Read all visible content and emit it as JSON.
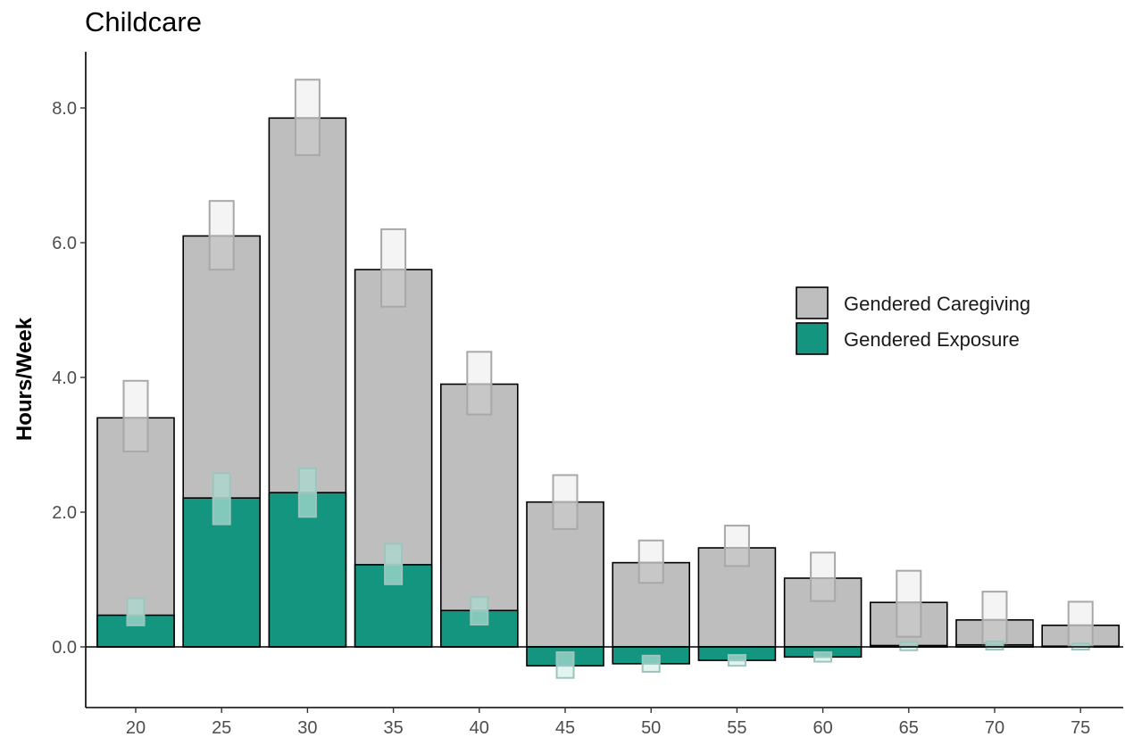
{
  "chart_data": {
    "type": "bar",
    "title": "Childcare",
    "xlabel": "",
    "ylabel": "Hours/Week",
    "ylim": [
      -0.85,
      8.8
    ],
    "yticks": [
      0,
      2,
      4,
      6,
      8
    ],
    "ytick_labels": [
      "0.0",
      "2.0",
      "4.0",
      "6.0",
      "8.0"
    ],
    "categories": [
      "20",
      "25",
      "30",
      "35",
      "40",
      "45",
      "50",
      "55",
      "60",
      "65",
      "70",
      "75"
    ],
    "series": [
      {
        "name": "Gendered Caregiving",
        "color": "#bebebe",
        "values": [
          3.4,
          6.1,
          7.85,
          5.6,
          3.9,
          2.15,
          1.25,
          1.47,
          1.02,
          0.66,
          0.4,
          0.32
        ],
        "ci_low": [
          2.9,
          5.6,
          7.3,
          5.05,
          3.45,
          1.75,
          0.95,
          1.2,
          0.68,
          0.15,
          0.05,
          0.0
        ],
        "ci_high": [
          3.95,
          6.62,
          8.42,
          6.2,
          4.38,
          2.55,
          1.58,
          1.8,
          1.4,
          1.13,
          0.82,
          0.67
        ]
      },
      {
        "name": "Gendered Exposure",
        "color": "#139580",
        "values": [
          0.47,
          2.21,
          2.29,
          1.22,
          0.54,
          -0.28,
          -0.25,
          -0.2,
          -0.15,
          0.02,
          0.03,
          0.01
        ],
        "ci_low": [
          0.32,
          1.82,
          1.93,
          0.93,
          0.33,
          -0.46,
          -0.37,
          -0.28,
          -0.22,
          -0.05,
          -0.04,
          -0.04
        ],
        "ci_high": [
          0.72,
          2.58,
          2.65,
          1.53,
          0.74,
          -0.08,
          -0.13,
          -0.12,
          -0.08,
          0.07,
          0.08,
          0.05
        ]
      }
    ],
    "legend": {
      "position": "right"
    },
    "grid": false
  }
}
